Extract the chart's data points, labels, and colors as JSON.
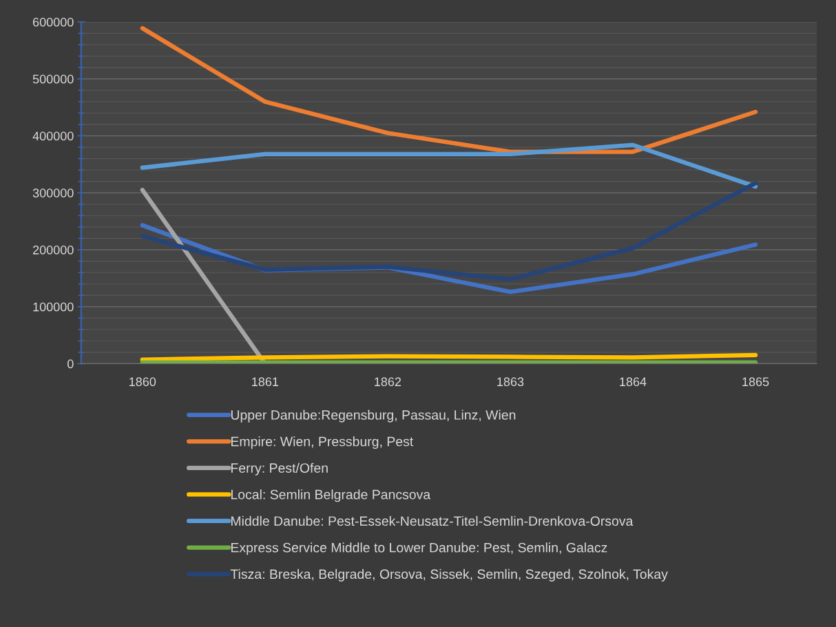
{
  "chart_data": {
    "type": "line",
    "categories": [
      "1860",
      "1861",
      "1862",
      "1863",
      "1864",
      "1865"
    ],
    "ylim": [
      0,
      600000
    ],
    "yticks": [
      0,
      100000,
      200000,
      300000,
      400000,
      500000,
      600000
    ],
    "grid": "y",
    "legend": "bottom",
    "marker": "none",
    "line_style": "solid",
    "series": [
      {
        "name": "Upper Danube:Regensburg, Passau, Linz, Wien",
        "color": "#4472c4",
        "values": [
          243000,
          164000,
          169000,
          126000,
          157000,
          209000
        ]
      },
      {
        "name": "Empire: Wien, Pressburg, Pest",
        "color": "#ed7d31",
        "values": [
          589000,
          460000,
          405000,
          372000,
          372000,
          442000
        ]
      },
      {
        "name": "Ferry: Pest/Ofen",
        "color": "#a5a5a5",
        "values": [
          305000,
          0,
          null,
          null,
          null,
          null
        ]
      },
      {
        "name": "Local: Semlin Belgrade Pancsova",
        "color": "#ffc000",
        "values": [
          7000,
          11000,
          13000,
          12000,
          11000,
          15000
        ]
      },
      {
        "name": "Middle Danube: Pest-Essek-Neusatz-Titel-Semlin-Drenkova-Orsova",
        "color": "#5b9bd5",
        "values": [
          344000,
          368000,
          368000,
          368000,
          384000,
          311000
        ]
      },
      {
        "name": "Express Service Middle to Lower Danube: Pest, Semlin, Galacz",
        "color": "#70ad47",
        "values": [
          2000,
          2000,
          2000,
          2000,
          2000,
          2000
        ]
      },
      {
        "name": "Tisza: Breska, Belgrade, Orsova, Sissek, Semlin, Szeged, Szolnok, Tokay",
        "color": "#264478",
        "values": [
          224000,
          165000,
          170000,
          148000,
          203000,
          317000
        ]
      }
    ]
  }
}
